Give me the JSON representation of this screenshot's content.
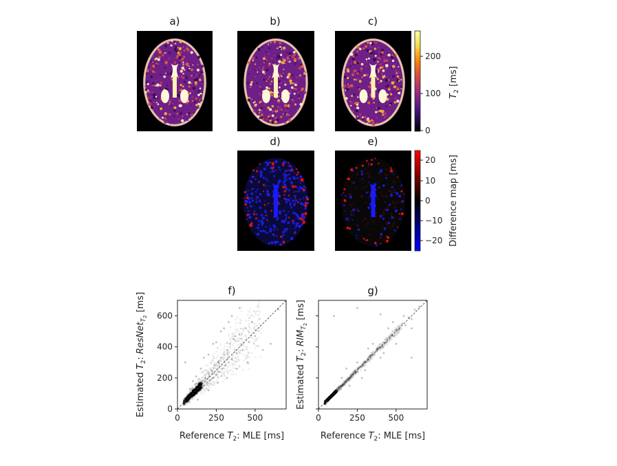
{
  "panel_labels": [
    "a)",
    "b)",
    "c)",
    "d)",
    "e)",
    "f)",
    "g)"
  ],
  "colorbar_t2": {
    "label_symbol": "T",
    "label_sub": "2",
    "label_unit": " [ms]",
    "ticks": [
      "0",
      "100",
      "200"
    ],
    "range": [
      0,
      270
    ],
    "colormap": "inferno-like",
    "colors": [
      "#000004",
      "#2b0b5e",
      "#6a1c8a",
      "#a9336f",
      "#dd513a",
      "#f98c0a",
      "#f4df4f",
      "#fcffa4"
    ]
  },
  "colorbar_diff": {
    "label": "Difference map [ms]",
    "ticks": [
      "20",
      "10",
      "0",
      "−10",
      "−20"
    ],
    "range": [
      -25,
      25
    ],
    "colormap": "blue-black-red",
    "colors": [
      "#0000ff",
      "#000000",
      "#ff0000"
    ]
  },
  "chart_data": [
    {
      "type": "scatter",
      "title": "f)",
      "xlabel": "Reference T2: MLE [ms]",
      "ylabel": "Estimated T2: ResNet_T2 [ms]",
      "xticks": [
        "0",
        "250",
        "500"
      ],
      "yticks": [
        "0",
        "200",
        "400",
        "600"
      ],
      "xlim": [
        0,
        700
      ],
      "ylim": [
        0,
        700
      ],
      "identity_line": true,
      "points": [
        [
          60,
          70
        ],
        [
          75,
          78
        ],
        [
          90,
          95
        ],
        [
          100,
          120
        ],
        [
          110,
          105
        ],
        [
          120,
          140
        ],
        [
          130,
          115
        ],
        [
          140,
          160
        ],
        [
          150,
          135
        ],
        [
          160,
          180
        ],
        [
          170,
          150
        ],
        [
          180,
          200
        ],
        [
          190,
          170
        ],
        [
          200,
          230
        ],
        [
          210,
          185
        ],
        [
          220,
          250
        ],
        [
          230,
          200
        ],
        [
          240,
          280
        ],
        [
          250,
          220
        ],
        [
          260,
          300
        ],
        [
          270,
          240
        ],
        [
          280,
          330
        ],
        [
          290,
          260
        ],
        [
          300,
          350
        ],
        [
          310,
          280
        ],
        [
          320,
          380
        ],
        [
          330,
          300
        ],
        [
          340,
          420
        ],
        [
          350,
          320
        ],
        [
          360,
          450
        ],
        [
          380,
          360
        ],
        [
          400,
          480
        ],
        [
          420,
          380
        ],
        [
          440,
          520
        ],
        [
          460,
          430
        ],
        [
          480,
          560
        ],
        [
          500,
          470
        ],
        [
          350,
          600
        ],
        [
          300,
          520
        ],
        [
          250,
          430
        ],
        [
          200,
          350
        ],
        [
          150,
          260
        ],
        [
          120,
          210
        ],
        [
          100,
          180
        ],
        [
          80,
          130
        ],
        [
          170,
          330
        ],
        [
          230,
          420
        ],
        [
          280,
          500
        ],
        [
          400,
          650
        ],
        [
          330,
          560
        ],
        [
          130,
          60
        ],
        [
          200,
          120
        ],
        [
          260,
          170
        ],
        [
          320,
          200
        ],
        [
          380,
          260
        ],
        [
          450,
          300
        ],
        [
          550,
          380
        ],
        [
          600,
          420
        ],
        [
          650,
          640
        ],
        [
          50,
          300
        ]
      ],
      "density": "heavy concentration near (60-150, 60-150)"
    },
    {
      "type": "scatter",
      "title": "g)",
      "xlabel": "Reference T2: MLE [ms]",
      "ylabel": "Estimated T2: RIM_T2 [ms]",
      "xticks": [
        "0",
        "250",
        "500"
      ],
      "yticks": [
        "0",
        "200",
        "400",
        "600"
      ],
      "xlim": [
        0,
        700
      ],
      "ylim": [
        0,
        700
      ],
      "identity_line": true,
      "points": [
        [
          60,
          62
        ],
        [
          75,
          74
        ],
        [
          90,
          92
        ],
        [
          100,
          99
        ],
        [
          120,
          118
        ],
        [
          140,
          143
        ],
        [
          160,
          158
        ],
        [
          180,
          183
        ],
        [
          200,
          197
        ],
        [
          220,
          224
        ],
        [
          240,
          236
        ],
        [
          260,
          265
        ],
        [
          280,
          275
        ],
        [
          300,
          305
        ],
        [
          320,
          315
        ],
        [
          340,
          346
        ],
        [
          360,
          352
        ],
        [
          380,
          388
        ],
        [
          400,
          395
        ],
        [
          420,
          428
        ],
        [
          440,
          432
        ],
        [
          460,
          470
        ],
        [
          480,
          472
        ],
        [
          500,
          510
        ],
        [
          520,
          515
        ],
        [
          540,
          550
        ],
        [
          560,
          540
        ],
        [
          580,
          590
        ],
        [
          600,
          580
        ],
        [
          620,
          640
        ],
        [
          300,
          250
        ],
        [
          350,
          420
        ],
        [
          400,
          330
        ],
        [
          250,
          300
        ],
        [
          200,
          150
        ],
        [
          450,
          520
        ],
        [
          500,
          420
        ],
        [
          150,
          200
        ],
        [
          550,
          600
        ],
        [
          600,
          520
        ],
        [
          100,
          600
        ],
        [
          250,
          650
        ],
        [
          400,
          610
        ],
        [
          600,
          330
        ],
        [
          650,
          660
        ],
        [
          180,
          260
        ],
        [
          320,
          390
        ],
        [
          480,
          560
        ],
        [
          280,
          200
        ],
        [
          420,
          360
        ]
      ],
      "density": "tight band along identity line"
    }
  ]
}
